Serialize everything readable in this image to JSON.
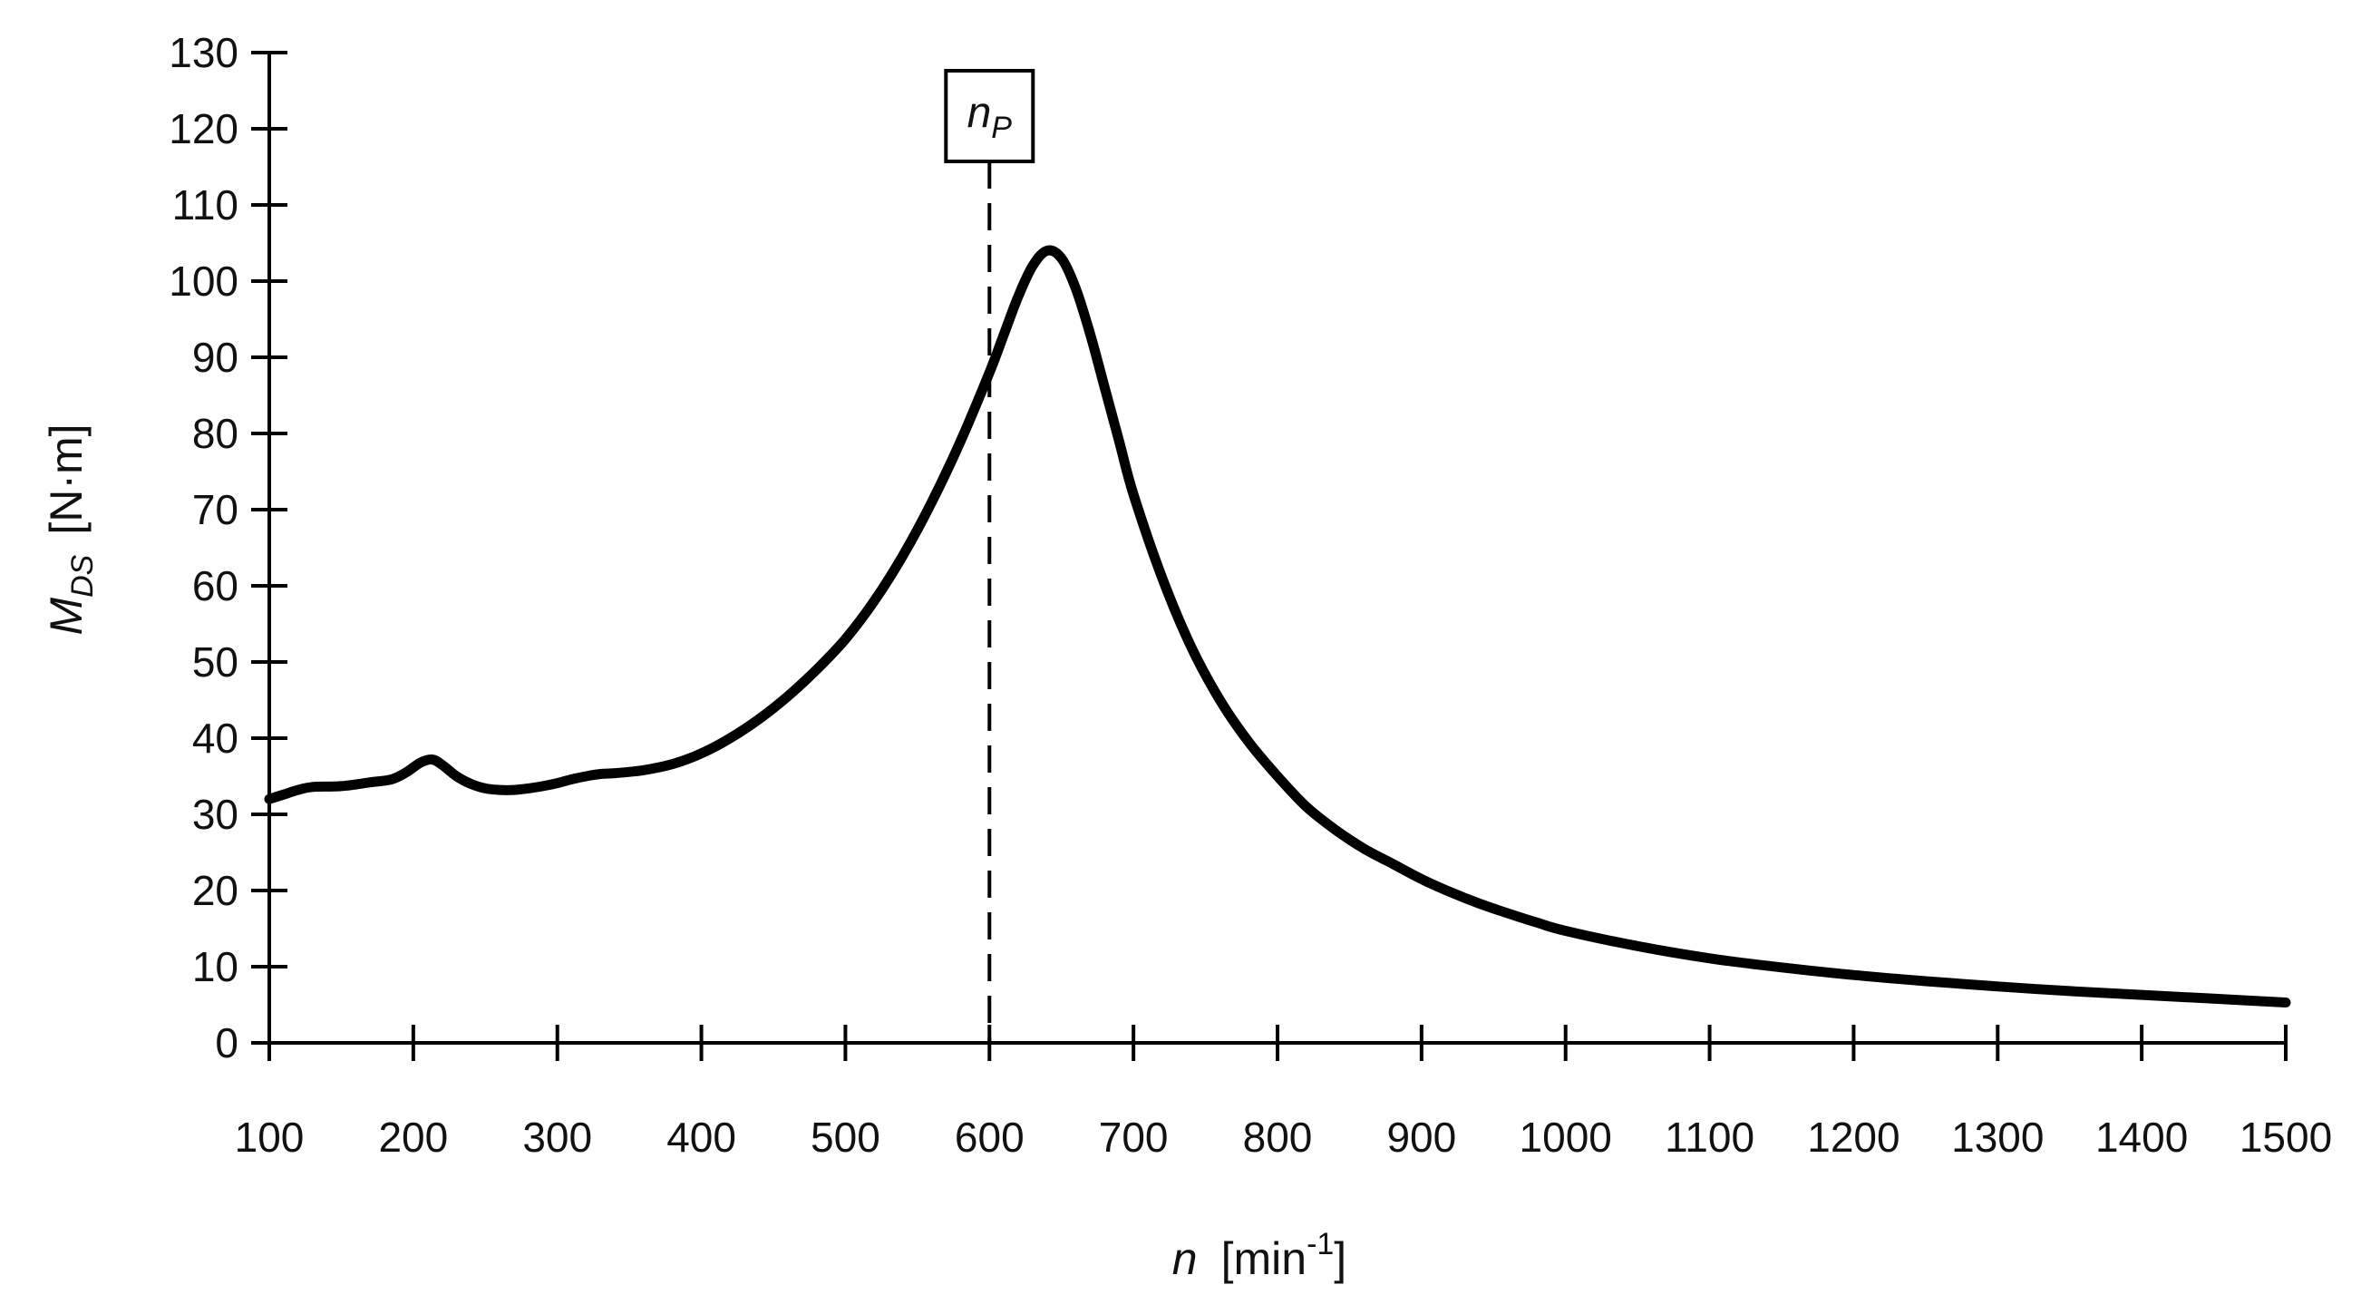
{
  "chart_data": {
    "type": "line",
    "xlabel": {
      "var": "n",
      "unit_open": "[min",
      "unit_sup": "-1",
      "unit_close": "]"
    },
    "ylabel": {
      "var": "M",
      "sub": "DS",
      "unit": "[N·m]"
    },
    "xlim": [
      100,
      1500
    ],
    "ylim": [
      0,
      130
    ],
    "x_ticks": [
      100,
      200,
      300,
      400,
      500,
      600,
      700,
      800,
      900,
      1000,
      1100,
      1200,
      1300,
      1400,
      1500
    ],
    "y_ticks": [
      0,
      10,
      20,
      30,
      40,
      50,
      60,
      70,
      80,
      90,
      100,
      110,
      120,
      130
    ],
    "grid": false,
    "series": [
      {
        "color": "#000000",
        "x": [
          100,
          110,
          120,
          130,
          150,
          170,
          185,
          195,
          205,
          213,
          220,
          230,
          240,
          250,
          260,
          270,
          280,
          290,
          300,
          310,
          320,
          330,
          340,
          360,
          380,
          400,
          420,
          440,
          460,
          480,
          500,
          520,
          540,
          560,
          580,
          600,
          610,
          620,
          630,
          640,
          650,
          660,
          670,
          680,
          690,
          700,
          720,
          740,
          760,
          780,
          800,
          820,
          840,
          860,
          880,
          900,
          920,
          940,
          960,
          980,
          1000,
          1050,
          1100,
          1150,
          1200,
          1250,
          1300,
          1350,
          1400,
          1450,
          1500
        ],
        "y": [
          32,
          32.6,
          33.2,
          33.6,
          33.7,
          34.2,
          34.6,
          35.5,
          36.8,
          37.2,
          36.5,
          35,
          34,
          33.4,
          33.2,
          33.2,
          33.4,
          33.7,
          34.1,
          34.6,
          35,
          35.3,
          35.4,
          35.8,
          36.6,
          38,
          40,
          42.5,
          45.5,
          49,
          53,
          58,
          64,
          71,
          79,
          88,
          93,
          98,
          102,
          104,
          103,
          99,
          93,
          86,
          79,
          72,
          61,
          52,
          45,
          39.5,
          35,
          31,
          28,
          25.5,
          23.5,
          21.5,
          19.8,
          18.3,
          17,
          15.8,
          14.7,
          12.7,
          11.1,
          9.9,
          8.9,
          8.1,
          7.4,
          6.8,
          6.3,
          5.8,
          5.3
        ]
      }
    ],
    "annotations": [
      {
        "type": "vline",
        "x": 600,
        "style": "dashed",
        "label_var": "n",
        "label_sub": "P"
      }
    ]
  }
}
